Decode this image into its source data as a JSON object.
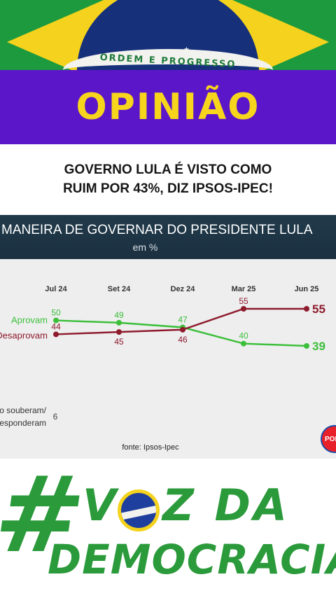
{
  "banner": {
    "motto": "ORDEM E PROGRESSO",
    "section": "OPINIÃO"
  },
  "headline": {
    "line1": "GOVERNO LULA É VISTO COMO",
    "line2": "RUIM POR 43%, DIZ IPSOS-IPEC!"
  },
  "chart_data": {
    "type": "line",
    "title": "MANEIRA DE GOVERNAR DO PRESIDENTE LULA",
    "subtitle": "em %",
    "categories": [
      "Jul 24",
      "Set 24",
      "Dez 24",
      "Mar 25",
      "Jun 25"
    ],
    "series": [
      {
        "name": "Aprovam",
        "values": [
          50,
          49,
          47,
          40,
          39
        ],
        "color": "#3cbf3a"
      },
      {
        "name": "Desaprovam",
        "values": [
          44,
          45,
          46,
          55,
          55
        ],
        "color": "#8e1b2c"
      }
    ],
    "extra": {
      "name": "Não souberam/ responderam",
      "line1": "Não souberam/",
      "line2": "responderam",
      "first_value": "6"
    },
    "ylim": [
      30,
      60
    ],
    "source": "fonte: Ipsos-Ipec",
    "grid": false,
    "legend": "left, inline labels"
  },
  "logo": {
    "text": "POLI"
  },
  "brand": {
    "hash": "#",
    "word1": "V",
    "word1b": "Z DA",
    "word2": "DEMOCRACIA"
  },
  "colors": {
    "purple": "#5b16c9",
    "yellow": "#f7d51c",
    "green": "#2a9a3a",
    "navy": "#1b3040"
  }
}
